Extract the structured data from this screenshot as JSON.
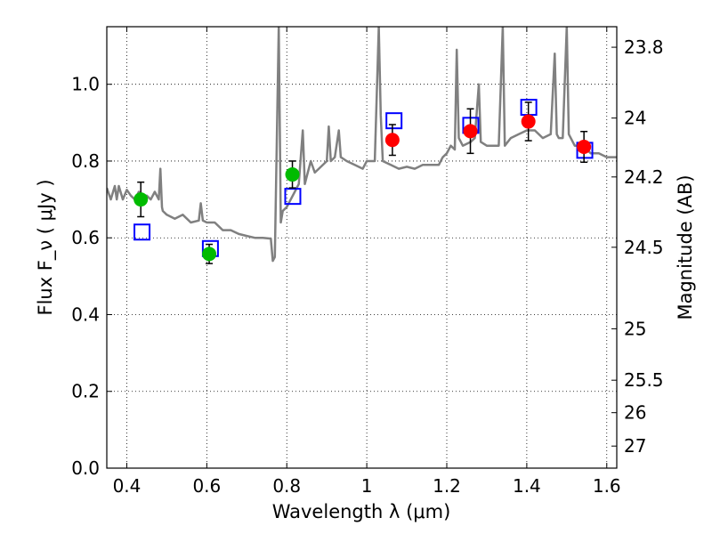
{
  "chart_data": {
    "type": "scatter",
    "xlabel": "Wavelength  λ (μm)",
    "ylabel": "Flux  F_ν  ( μJy )",
    "ylabel_right": "Magnitude (AB)",
    "xlim": [
      0.35,
      1.625
    ],
    "ylim": [
      0.0,
      1.15
    ],
    "xticks": [
      0.4,
      0.6,
      0.8,
      1.0,
      1.2,
      1.4,
      1.6
    ],
    "xtick_labels": [
      "0.4",
      "0.6",
      "0.8",
      "1",
      "1.2",
      "1.4",
      "1.6"
    ],
    "yticks": [
      0.0,
      0.2,
      0.4,
      0.6,
      0.8,
      1.0
    ],
    "ytick_labels": [
      "0.0",
      "0.2",
      "0.4",
      "0.6",
      "0.8",
      "1.0"
    ],
    "right_ticks": [
      {
        "label": "23.8",
        "flux": 1.0965
      },
      {
        "label": "24",
        "flux": 0.912
      },
      {
        "label": "24.2",
        "flux": 0.7586
      },
      {
        "label": "24.5",
        "flux": 0.5754
      },
      {
        "label": "25",
        "flux": 0.3631
      },
      {
        "label": "25.5",
        "flux": 0.2291
      },
      {
        "label": "26",
        "flux": 0.1445
      },
      {
        "label": "27",
        "flux": 0.0575
      }
    ],
    "grid": true,
    "colors": {
      "green": "#00bb00",
      "red": "#ff0000",
      "model_box": "#0000ff",
      "spectrum": "#808080",
      "error": "#000000"
    },
    "series": [
      {
        "marker": "circle",
        "color": "#00bb00",
        "points": [
          {
            "x": 0.435,
            "y": 0.7,
            "err": 0.045
          },
          {
            "x": 0.606,
            "y": 0.558,
            "err": 0.025
          },
          {
            "x": 0.814,
            "y": 0.765,
            "err": 0.035
          }
        ]
      },
      {
        "marker": "circle",
        "color": "#ff0000",
        "points": [
          {
            "x": 1.064,
            "y": 0.855,
            "err": 0.04
          },
          {
            "x": 1.259,
            "y": 0.878,
            "err": 0.058
          },
          {
            "x": 1.404,
            "y": 0.903,
            "err": 0.05
          },
          {
            "x": 1.543,
            "y": 0.837,
            "err": 0.04
          }
        ]
      },
      {
        "marker": "square",
        "color": "#0000ff",
        "points": [
          {
            "x": 0.438,
            "y": 0.615
          },
          {
            "x": 0.609,
            "y": 0.572
          },
          {
            "x": 0.815,
            "y": 0.708
          },
          {
            "x": 1.068,
            "y": 0.905
          },
          {
            "x": 1.26,
            "y": 0.893
          },
          {
            "x": 1.405,
            "y": 0.94
          },
          {
            "x": 1.545,
            "y": 0.828
          }
        ]
      },
      {
        "marker": "line",
        "color": "#808080",
        "points": [
          [
            0.35,
            0.73
          ],
          [
            0.36,
            0.7
          ],
          [
            0.37,
            0.735
          ],
          [
            0.375,
            0.7
          ],
          [
            0.38,
            0.735
          ],
          [
            0.39,
            0.7
          ],
          [
            0.4,
            0.725
          ],
          [
            0.41,
            0.71
          ],
          [
            0.42,
            0.7
          ],
          [
            0.43,
            0.72
          ],
          [
            0.44,
            0.7
          ],
          [
            0.45,
            0.71
          ],
          [
            0.46,
            0.7
          ],
          [
            0.47,
            0.72
          ],
          [
            0.48,
            0.7
          ],
          [
            0.484,
            0.78
          ],
          [
            0.488,
            0.68
          ],
          [
            0.49,
            0.67
          ],
          [
            0.5,
            0.66
          ],
          [
            0.52,
            0.65
          ],
          [
            0.54,
            0.66
          ],
          [
            0.56,
            0.64
          ],
          [
            0.58,
            0.645
          ],
          [
            0.585,
            0.69
          ],
          [
            0.59,
            0.645
          ],
          [
            0.6,
            0.64
          ],
          [
            0.62,
            0.64
          ],
          [
            0.64,
            0.62
          ],
          [
            0.66,
            0.62
          ],
          [
            0.68,
            0.61
          ],
          [
            0.7,
            0.605
          ],
          [
            0.72,
            0.6
          ],
          [
            0.74,
            0.6
          ],
          [
            0.76,
            0.598
          ],
          [
            0.765,
            0.54
          ],
          [
            0.77,
            0.55
          ],
          [
            0.775,
            0.85
          ],
          [
            0.78,
            1.15
          ],
          [
            0.785,
            0.64
          ],
          [
            0.79,
            0.67
          ],
          [
            0.8,
            0.68
          ],
          [
            0.81,
            0.7
          ],
          [
            0.82,
            0.72
          ],
          [
            0.83,
            0.74
          ],
          [
            0.84,
            0.88
          ],
          [
            0.845,
            0.74
          ],
          [
            0.85,
            0.76
          ],
          [
            0.86,
            0.8
          ],
          [
            0.87,
            0.77
          ],
          [
            0.88,
            0.78
          ],
          [
            0.9,
            0.8
          ],
          [
            0.905,
            0.89
          ],
          [
            0.91,
            0.8
          ],
          [
            0.92,
            0.81
          ],
          [
            0.93,
            0.88
          ],
          [
            0.935,
            0.81
          ],
          [
            0.95,
            0.8
          ],
          [
            0.97,
            0.79
          ],
          [
            0.99,
            0.78
          ],
          [
            1.0,
            0.8
          ],
          [
            1.02,
            0.8
          ],
          [
            1.03,
            1.15
          ],
          [
            1.035,
            0.92
          ],
          [
            1.04,
            0.8
          ],
          [
            1.06,
            0.79
          ],
          [
            1.08,
            0.78
          ],
          [
            1.1,
            0.785
          ],
          [
            1.12,
            0.78
          ],
          [
            1.14,
            0.79
          ],
          [
            1.16,
            0.79
          ],
          [
            1.18,
            0.79
          ],
          [
            1.19,
            0.81
          ],
          [
            1.2,
            0.82
          ],
          [
            1.21,
            0.84
          ],
          [
            1.22,
            0.83
          ],
          [
            1.225,
            1.09
          ],
          [
            1.23,
            0.86
          ],
          [
            1.24,
            0.84
          ],
          [
            1.26,
            0.85
          ],
          [
            1.27,
            0.86
          ],
          [
            1.28,
            1.0
          ],
          [
            1.285,
            0.85
          ],
          [
            1.3,
            0.84
          ],
          [
            1.32,
            0.84
          ],
          [
            1.33,
            0.84
          ],
          [
            1.34,
            1.15
          ],
          [
            1.345,
            0.84
          ],
          [
            1.36,
            0.86
          ],
          [
            1.38,
            0.87
          ],
          [
            1.4,
            0.88
          ],
          [
            1.42,
            0.88
          ],
          [
            1.44,
            0.86
          ],
          [
            1.46,
            0.87
          ],
          [
            1.47,
            1.08
          ],
          [
            1.475,
            0.87
          ],
          [
            1.48,
            0.86
          ],
          [
            1.49,
            0.86
          ],
          [
            1.5,
            1.15
          ],
          [
            1.505,
            0.87
          ],
          [
            1.52,
            0.84
          ],
          [
            1.54,
            0.84
          ],
          [
            1.56,
            0.82
          ],
          [
            1.58,
            0.82
          ],
          [
            1.6,
            0.81
          ],
          [
            1.625,
            0.81
          ]
        ]
      }
    ]
  }
}
